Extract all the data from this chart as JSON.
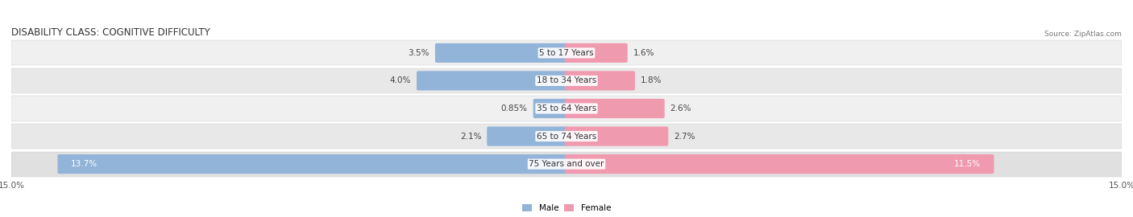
{
  "title": "DISABILITY CLASS: COGNITIVE DIFFICULTY",
  "source": "Source: ZipAtlas.com",
  "categories": [
    "5 to 17 Years",
    "18 to 34 Years",
    "35 to 64 Years",
    "65 to 74 Years",
    "75 Years and over"
  ],
  "male_values": [
    3.5,
    4.0,
    0.85,
    2.1,
    13.7
  ],
  "female_values": [
    1.6,
    1.8,
    2.6,
    2.7,
    11.5
  ],
  "x_max": 15.0,
  "male_color": "#92b4d8",
  "female_color": "#f09ab0",
  "row_bg_colors": [
    "#f0f0f0",
    "#e8e8e8",
    "#f0f0f0",
    "#e8e8e8",
    "#e0e0e0"
  ],
  "title_fontsize": 8.5,
  "label_fontsize": 7.5,
  "value_fontsize": 7.5,
  "tick_fontsize": 7.5,
  "legend_fontsize": 7.5
}
